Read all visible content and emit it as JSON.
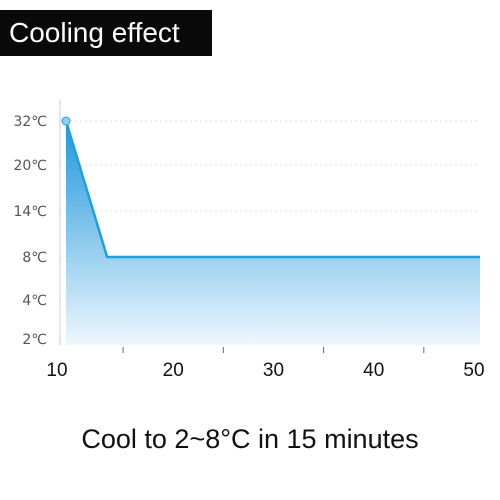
{
  "header": {
    "title": "Cooling effect"
  },
  "caption": "Cool to 2~8°C in 15 minutes",
  "colors": {
    "line": "#1e9fe0",
    "fill_top": "#1c96dc",
    "fill_bottom": "#eef7fd",
    "grid": "#dddddd",
    "title_bg": "#0a0a0a"
  },
  "chart_data": {
    "type": "area",
    "title": "Cooling effect",
    "xlabel": "",
    "ylabel": "",
    "x_ticks": [
      10,
      20,
      30,
      40,
      50
    ],
    "y_ticks": [
      "32℃",
      "20℃",
      "14℃",
      "8℃",
      "4℃",
      "2℃"
    ],
    "y_tick_values": [
      32,
      20,
      14,
      8,
      4,
      2
    ],
    "xlim": [
      10.7,
      52
    ],
    "series": [
      {
        "x": [
          10.7,
          14.8,
          52
        ],
        "y": [
          32,
          8,
          8
        ]
      }
    ],
    "grid": "horizontal-dotted"
  }
}
